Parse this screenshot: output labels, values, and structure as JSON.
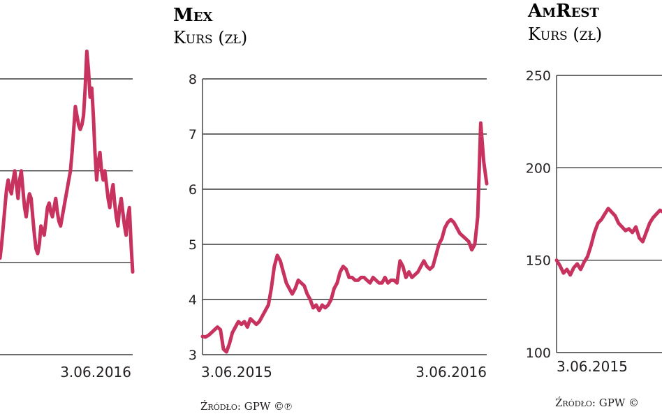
{
  "chart_data": [
    {
      "type": "line",
      "title": "",
      "subtitle": "",
      "x_labels": [
        "3.06.2016"
      ],
      "ylim": [
        0,
        3
      ],
      "gridlines": [
        1,
        2,
        3
      ],
      "grid": true,
      "series_color": "#c8325e",
      "values": [
        1.05,
        1.2,
        1.4,
        1.6,
        1.8,
        1.9,
        1.8,
        1.75,
        1.9,
        2.0,
        1.85,
        1.7,
        1.9,
        2.0,
        1.8,
        1.6,
        1.5,
        1.65,
        1.75,
        1.7,
        1.5,
        1.3,
        1.15,
        1.1,
        1.2,
        1.4,
        1.35,
        1.3,
        1.45,
        1.6,
        1.65,
        1.55,
        1.5,
        1.6,
        1.7,
        1.55,
        1.45,
        1.4,
        1.5,
        1.6,
        1.7,
        1.8,
        1.9,
        2.0,
        2.2,
        2.45,
        2.7,
        2.6,
        2.5,
        2.45,
        2.5,
        2.6,
        2.9,
        3.3,
        3.1,
        2.8,
        2.9,
        2.6,
        2.2,
        1.9,
        2.1,
        2.2,
        2.0,
        1.9,
        2.0,
        1.85,
        1.7,
        1.6,
        1.75,
        1.85,
        1.65,
        1.5,
        1.4,
        1.6,
        1.7,
        1.55,
        1.4,
        1.3,
        1.5,
        1.6,
        1.2,
        0.9
      ]
    },
    {
      "type": "line",
      "title": "Mex",
      "subtitle": "Kurs (zł)",
      "x_labels": [
        "3.06.2015",
        "3.06.2016"
      ],
      "ylim": [
        3,
        8
      ],
      "y_ticks": [
        3,
        4,
        5,
        6,
        7,
        8
      ],
      "grid": true,
      "series_color": "#c8325e",
      "values": [
        3.33,
        3.32,
        3.35,
        3.4,
        3.45,
        3.5,
        3.45,
        3.1,
        3.05,
        3.2,
        3.4,
        3.5,
        3.6,
        3.55,
        3.6,
        3.5,
        3.65,
        3.6,
        3.55,
        3.6,
        3.7,
        3.8,
        3.9,
        4.2,
        4.6,
        4.8,
        4.7,
        4.5,
        4.3,
        4.2,
        4.1,
        4.2,
        4.35,
        4.3,
        4.25,
        4.1,
        4.0,
        3.85,
        3.9,
        3.8,
        3.9,
        3.85,
        3.9,
        4.0,
        4.2,
        4.3,
        4.5,
        4.6,
        4.55,
        4.4,
        4.4,
        4.35,
        4.35,
        4.4,
        4.4,
        4.35,
        4.3,
        4.4,
        4.35,
        4.3,
        4.3,
        4.4,
        4.3,
        4.35,
        4.35,
        4.3,
        4.7,
        4.6,
        4.4,
        4.5,
        4.4,
        4.45,
        4.5,
        4.6,
        4.7,
        4.6,
        4.55,
        4.6,
        4.8,
        5.0,
        5.1,
        5.3,
        5.4,
        5.45,
        5.4,
        5.3,
        5.2,
        5.15,
        5.1,
        5.05,
        4.9,
        5.0,
        5.5,
        7.2,
        6.5,
        6.1
      ]
    },
    {
      "type": "line",
      "title": "AmRest",
      "subtitle": "Kurs (zł)",
      "x_labels": [
        "3.06.2015"
      ],
      "ylim": [
        100,
        250
      ],
      "y_ticks": [
        100,
        150,
        200,
        250
      ],
      "grid": true,
      "series_color": "#c8325e",
      "values": [
        150,
        147,
        143,
        145,
        142,
        146,
        148,
        145,
        149,
        152,
        158,
        165,
        170,
        172,
        175,
        178,
        176,
        174,
        170,
        168,
        166,
        167,
        165,
        168,
        162,
        160,
        165,
        170,
        173,
        175,
        177,
        176
      ]
    }
  ],
  "source_labels": [
    "Źródło: GPW ©℗",
    "Źródło: GPW ©"
  ]
}
